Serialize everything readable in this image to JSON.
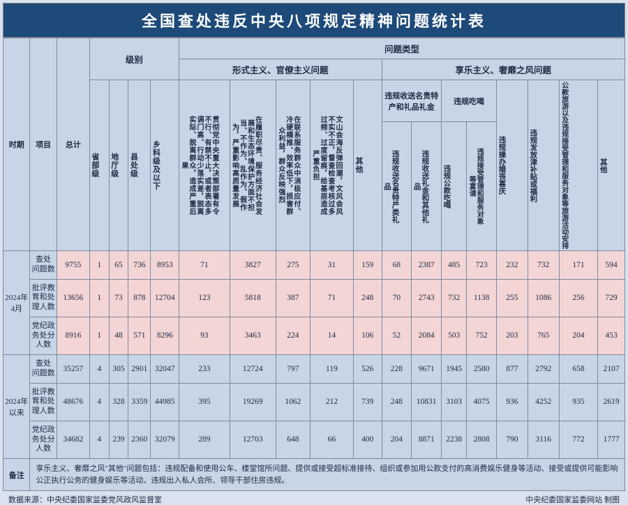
{
  "title": "全国查处违反中央八项规定精神问题统计表",
  "hdr": {
    "period": "时期",
    "item": "项目",
    "total": "总计",
    "level_group": "级别",
    "level": {
      "a": "省部级",
      "b": "地厅级",
      "c": "县处级",
      "d": "乡科级及以下"
    },
    "type_group": "问题类型",
    "typeA_group": "形式主义、官僚主义问题",
    "typeB_group": "享乐主义、奢靡之风问题",
    "typeA": {
      "a": "贯彻党中央重大决策部署有令不行、有禁不止，或者表态多调门高、行动少落实差，脱离实际、脱离群众，造成严重后果",
      "b": "在履职尽责、服务经济社会发展和生态环境保护方面不担当、不作为、乱作为、假作为，严重影响高质量发展",
      "c": "在联系服务群众中消极应付、冷硬横推、效率低下，损害群众利益，群众反映强烈",
      "d": "文山会海反弹回潮，文风会风不实不正，督查检查考核过多过频、过度留痕，给基层造成严重负担",
      "e": "其他"
    },
    "typeB": {
      "g1": "违规收送名贵特产和礼品礼金",
      "g1a": "违规收送名贵特产类礼品",
      "g1b": "违规收送礼金和其他礼品",
      "g2": "违规吃喝",
      "g2a": "违规公款吃喝",
      "g2b": "违规接受管理和服务对象等宴请",
      "c": "违规操办婚丧喜庆",
      "d": "违规发放津补贴或福利",
      "e": "公款旅游以及违规接受管理和服务对象等旅游活动安排",
      "f": "其他"
    }
  },
  "periods": [
    {
      "label": "2024年4月",
      "style": "pink"
    },
    {
      "label": "2024年以来",
      "style": "norm"
    }
  ],
  "items": [
    "查处问题数",
    "批评教育和处理人数",
    "党纪政务处分人数"
  ],
  "rows": [
    {
      "p": 0,
      "i": 0,
      "v": [
        "9755",
        "1",
        "65",
        "736",
        "8953",
        "71",
        "3827",
        "275",
        "31",
        "159",
        "68",
        "2387",
        "485",
        "723",
        "232",
        "732",
        "171",
        "594"
      ]
    },
    {
      "p": 0,
      "i": 1,
      "v": [
        "13656",
        "1",
        "73",
        "878",
        "12704",
        "123",
        "5818",
        "387",
        "71",
        "248",
        "70",
        "2743",
        "732",
        "1138",
        "255",
        "1086",
        "256",
        "729"
      ]
    },
    {
      "p": 0,
      "i": 2,
      "v": [
        "8916",
        "1",
        "48",
        "571",
        "8296",
        "93",
        "3463",
        "224",
        "14",
        "106",
        "52",
        "2084",
        "503",
        "752",
        "203",
        "765",
        "204",
        "453"
      ]
    },
    {
      "p": 1,
      "i": 0,
      "v": [
        "35257",
        "4",
        "305",
        "2901",
        "32047",
        "233",
        "12724",
        "797",
        "119",
        "526",
        "228",
        "9671",
        "1945",
        "2580",
        "877",
        "2792",
        "658",
        "2107"
      ]
    },
    {
      "p": 1,
      "i": 1,
      "v": [
        "48676",
        "4",
        "328",
        "3359",
        "44985",
        "395",
        "19269",
        "1062",
        "212",
        "739",
        "248",
        "10831",
        "3103",
        "4075",
        "936",
        "4252",
        "935",
        "2619"
      ]
    },
    {
      "p": 1,
      "i": 2,
      "v": [
        "34682",
        "4",
        "239",
        "2360",
        "32079",
        "289",
        "12703",
        "648",
        "66",
        "400",
        "204",
        "8871",
        "2238",
        "2808",
        "790",
        "3116",
        "772",
        "1777"
      ]
    }
  ],
  "note_label": "备注",
  "note_text": "享乐主义、奢靡之风\"其他\"问题包括：违规配备和使用公车、楼堂馆所问题、提供或接受超标准接待、组织或参加用公款支付的高消费娱乐健身等活动、接受或提供可能影响公正执行公务的健身娱乐等活动、违规出入私人会所、领导干部住房违规。",
  "source_left": "数据来源：中央纪委国家监委党风政风监督室",
  "source_right": "中央纪委国家监委网站 制图",
  "colors": {
    "title_bg": "#1e4a7a",
    "title_fg": "#ffffff",
    "header_bg": "#c8d5e6",
    "border": "#7a8aa0",
    "pink_bg": "#f4d5d5",
    "norm_bg": "#c8d5e6",
    "body_bg": "#d9e2ee",
    "text": "#1a2a40"
  }
}
